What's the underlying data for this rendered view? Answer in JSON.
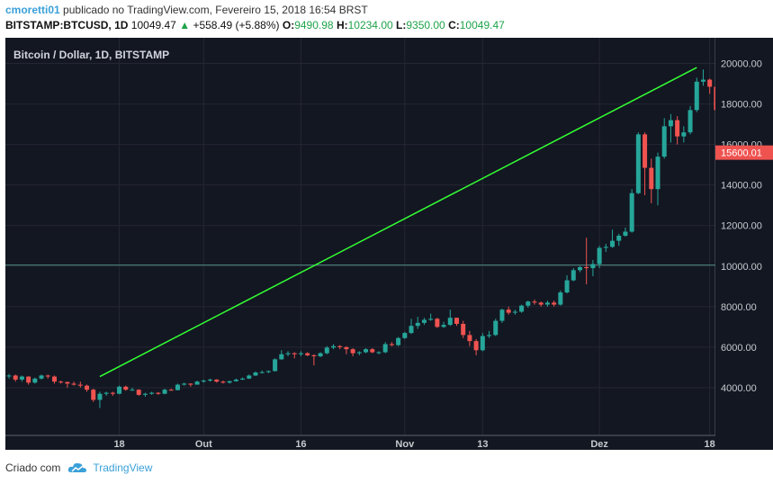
{
  "header": {
    "user": "cmoretti01",
    "published_text": "publicado no TradingView.com, Fevereiro 15, 2018 16:54 BRST",
    "symbol": "BITSTAMP:BTCUSD, 1D",
    "last": "10049.47",
    "change_arrow": "▲",
    "change": "+558.49 (+5.88%)",
    "open_label": "O:",
    "open": "9490.98",
    "high_label": "H:",
    "high": "10234.00",
    "low_label": "L:",
    "low": "9350.00",
    "close_label": "C:",
    "close": "10049.47"
  },
  "footer": {
    "created_with": "Criado com",
    "brand": "TradingView"
  },
  "colors": {
    "background": "#131722",
    "up": "#26a69a",
    "down": "#ef5350",
    "trendline": "#33ff33",
    "hline": "#4e8a82",
    "price_tag": "#ef5350"
  },
  "chart_data": {
    "type": "candlestick",
    "title": "Bitcoin / Dollar, 1D, BITSTAMP",
    "ylim": [
      2000,
      21000
    ],
    "y_ticks": [
      "20000.00",
      "18000.00",
      "16000.00",
      "14000.00",
      "12000.00",
      "10000.00",
      "8000.00",
      "6000.00",
      "4000.00"
    ],
    "y_tick_values": [
      20000,
      18000,
      16000,
      14000,
      12000,
      10000,
      8000,
      6000,
      4000
    ],
    "x_ticks": [
      "18",
      "Out",
      "16",
      "Nov",
      "13",
      "Dez",
      "18"
    ],
    "x_tick_values": [
      "2017-09-18",
      "2017-10-01",
      "2017-10-16",
      "2017-11-01",
      "2017-11-13",
      "2017-12-01",
      "2017-12-18"
    ],
    "current_price_label": "15600.01",
    "current_price": 15600.01,
    "horizontal_line": 10050,
    "trendline": {
      "from": [
        "2017-09-15",
        4550
      ],
      "to": [
        "2017-12-16",
        19800
      ]
    },
    "candles": [
      [
        "2017-09-01",
        4560,
        4680,
        4450,
        4600
      ],
      [
        "2017-09-02",
        4600,
        4650,
        4300,
        4400
      ],
      [
        "2017-09-03",
        4400,
        4600,
        4300,
        4550
      ],
      [
        "2017-09-04",
        4550,
        4560,
        4150,
        4250
      ],
      [
        "2017-09-05",
        4250,
        4500,
        4200,
        4450
      ],
      [
        "2017-09-06",
        4450,
        4650,
        4400,
        4600
      ],
      [
        "2017-09-07",
        4600,
        4650,
        4450,
        4550
      ],
      [
        "2017-09-08",
        4550,
        4600,
        4200,
        4300
      ],
      [
        "2017-09-09",
        4300,
        4350,
        4200,
        4280
      ],
      [
        "2017-09-10",
        4280,
        4300,
        4000,
        4200
      ],
      [
        "2017-09-11",
        4200,
        4300,
        4100,
        4150
      ],
      [
        "2017-09-12",
        4150,
        4300,
        4000,
        4100
      ],
      [
        "2017-09-13",
        4100,
        4150,
        3800,
        3900
      ],
      [
        "2017-09-14",
        3900,
        3950,
        3300,
        3400
      ],
      [
        "2017-09-15",
        3400,
        3800,
        3000,
        3700
      ],
      [
        "2017-09-16",
        3700,
        3800,
        3600,
        3750
      ],
      [
        "2017-09-17",
        3750,
        3800,
        3600,
        3700
      ],
      [
        "2017-09-18",
        3700,
        4100,
        3680,
        4050
      ],
      [
        "2017-09-19",
        4050,
        4100,
        3850,
        3900
      ],
      [
        "2017-09-20",
        3900,
        4000,
        3850,
        3900
      ],
      [
        "2017-09-21",
        3900,
        3920,
        3600,
        3650
      ],
      [
        "2017-09-22",
        3650,
        3750,
        3550,
        3700
      ],
      [
        "2017-09-23",
        3700,
        3800,
        3650,
        3750
      ],
      [
        "2017-09-24",
        3750,
        3780,
        3650,
        3700
      ],
      [
        "2017-09-25",
        3700,
        3950,
        3680,
        3900
      ],
      [
        "2017-09-26",
        3900,
        3950,
        3850,
        3880
      ],
      [
        "2017-09-27",
        3880,
        4200,
        3870,
        4150
      ],
      [
        "2017-09-28",
        4150,
        4250,
        4100,
        4200
      ],
      [
        "2017-09-29",
        4200,
        4220,
        4050,
        4150
      ],
      [
        "2017-09-30",
        4150,
        4350,
        4150,
        4300
      ],
      [
        "2017-10-01",
        4300,
        4400,
        4250,
        4350
      ],
      [
        "2017-10-02",
        4350,
        4450,
        4300,
        4400
      ],
      [
        "2017-10-03",
        4400,
        4420,
        4250,
        4300
      ],
      [
        "2017-10-04",
        4300,
        4350,
        4200,
        4250
      ],
      [
        "2017-10-05",
        4250,
        4350,
        4200,
        4320
      ],
      [
        "2017-10-06",
        4320,
        4450,
        4300,
        4400
      ],
      [
        "2017-10-07",
        4400,
        4500,
        4380,
        4450
      ],
      [
        "2017-10-08",
        4450,
        4650,
        4430,
        4600
      ],
      [
        "2017-10-09",
        4600,
        4800,
        4580,
        4750
      ],
      [
        "2017-10-10",
        4750,
        4850,
        4700,
        4770
      ],
      [
        "2017-10-11",
        4770,
        4850,
        4720,
        4820
      ],
      [
        "2017-10-12",
        4820,
        5450,
        4800,
        5400
      ],
      [
        "2017-10-13",
        5400,
        5850,
        5380,
        5650
      ],
      [
        "2017-10-14",
        5650,
        5800,
        5550,
        5700
      ],
      [
        "2017-10-15",
        5700,
        5750,
        5450,
        5650
      ],
      [
        "2017-10-16",
        5650,
        5800,
        5550,
        5700
      ],
      [
        "2017-10-17",
        5700,
        5750,
        5550,
        5600
      ],
      [
        "2017-10-18",
        5600,
        5650,
        5100,
        5550
      ],
      [
        "2017-10-19",
        5550,
        5750,
        5500,
        5700
      ],
      [
        "2017-10-20",
        5700,
        6050,
        5650,
        5980
      ],
      [
        "2017-10-21",
        5980,
        6150,
        5900,
        6050
      ],
      [
        "2017-10-22",
        6050,
        6100,
        5900,
        6000
      ],
      [
        "2017-10-23",
        6000,
        6050,
        5650,
        5900
      ],
      [
        "2017-10-24",
        5900,
        5950,
        5550,
        5700
      ],
      [
        "2017-10-25",
        5700,
        5800,
        5600,
        5750
      ],
      [
        "2017-10-26",
        5750,
        5950,
        5700,
        5900
      ],
      [
        "2017-10-27",
        5900,
        5950,
        5700,
        5750
      ],
      [
        "2017-10-28",
        5750,
        5800,
        5650,
        5750
      ],
      [
        "2017-10-29",
        5750,
        6250,
        5700,
        6150
      ],
      [
        "2017-10-30",
        6150,
        6250,
        6050,
        6100
      ],
      [
        "2017-10-31",
        6100,
        6500,
        6050,
        6450
      ],
      [
        "2017-11-01",
        6450,
        6750,
        6400,
        6700
      ],
      [
        "2017-11-02",
        6700,
        7400,
        6650,
        7050
      ],
      [
        "2017-11-03",
        7050,
        7500,
        6900,
        7200
      ],
      [
        "2017-11-04",
        7200,
        7450,
        7100,
        7350
      ],
      [
        "2017-11-05",
        7350,
        7650,
        7300,
        7400
      ],
      [
        "2017-11-06",
        7400,
        7450,
        6950,
        7000
      ],
      [
        "2017-11-07",
        7000,
        7250,
        6950,
        7100
      ],
      [
        "2017-11-08",
        7100,
        7850,
        7050,
        7450
      ],
      [
        "2017-11-09",
        7450,
        7450,
        7050,
        7150
      ],
      [
        "2017-11-10",
        7150,
        7300,
        6450,
        6600
      ],
      [
        "2017-11-11",
        6600,
        6800,
        6050,
        6300
      ],
      [
        "2017-11-12",
        6300,
        6400,
        5600,
        5850
      ],
      [
        "2017-11-13",
        5850,
        6700,
        5800,
        6550
      ],
      [
        "2017-11-14",
        6550,
        6800,
        6450,
        6600
      ],
      [
        "2017-11-15",
        6600,
        7400,
        6550,
        7300
      ],
      [
        "2017-11-16",
        7300,
        7900,
        7200,
        7850
      ],
      [
        "2017-11-17",
        7850,
        8000,
        7600,
        7700
      ],
      [
        "2017-11-18",
        7700,
        7850,
        7600,
        7750
      ],
      [
        "2017-11-19",
        7750,
        8100,
        7700,
        8050
      ],
      [
        "2017-11-20",
        8050,
        8300,
        7950,
        8250
      ],
      [
        "2017-11-21",
        8250,
        8350,
        8100,
        8200
      ],
      [
        "2017-11-22",
        8200,
        8250,
        8000,
        8100
      ],
      [
        "2017-11-23",
        8100,
        8300,
        8000,
        8200
      ],
      [
        "2017-11-24",
        8200,
        8300,
        8000,
        8100
      ],
      [
        "2017-11-25",
        8100,
        8800,
        8050,
        8700
      ],
      [
        "2017-11-26",
        8700,
        9550,
        8650,
        9300
      ],
      [
        "2017-11-27",
        9300,
        9900,
        9250,
        9800
      ],
      [
        "2017-11-28",
        9800,
        10000,
        9700,
        9950
      ],
      [
        "2017-11-29",
        9950,
        11400,
        9100,
        9900
      ],
      [
        "2017-11-30",
        9900,
        10300,
        9500,
        10100
      ],
      [
        "2017-12-01",
        10100,
        11000,
        9900,
        10900
      ],
      [
        "2017-12-02",
        10900,
        11100,
        10700,
        10950
      ],
      [
        "2017-12-03",
        10950,
        11800,
        10900,
        11250
      ],
      [
        "2017-12-04",
        11250,
        11600,
        11000,
        11500
      ],
      [
        "2017-12-05",
        11500,
        11900,
        11450,
        11700
      ],
      [
        "2017-12-06",
        11700,
        13800,
        11650,
        13600
      ],
      [
        "2017-12-07",
        13600,
        16600,
        13550,
        16500
      ],
      [
        "2017-12-08",
        16500,
        16600,
        13500,
        14850
      ],
      [
        "2017-12-09",
        14850,
        15300,
        13100,
        13800
      ],
      [
        "2017-12-10",
        13800,
        15600,
        13000,
        15400
      ],
      [
        "2017-12-11",
        15400,
        17300,
        15300,
        16900
      ],
      [
        "2017-12-12",
        16900,
        17500,
        16100,
        17200
      ],
      [
        "2017-12-13",
        17200,
        17400,
        16000,
        16400
      ],
      [
        "2017-12-14",
        16400,
        16900,
        16100,
        16600
      ],
      [
        "2017-12-15",
        16600,
        17900,
        16500,
        17700
      ],
      [
        "2017-12-16",
        17700,
        19300,
        17600,
        19100
      ],
      [
        "2017-12-17",
        19100,
        19700,
        18900,
        19200
      ],
      [
        "2017-12-18",
        19200,
        19250,
        18500,
        18850
      ],
      [
        "2017-12-19",
        18850,
        19100,
        16900,
        17700
      ],
      [
        "2017-12-20",
        17700,
        17800,
        15500,
        16600
      ],
      [
        "2017-12-21",
        16600,
        16700,
        14800,
        15600
      ]
    ]
  }
}
